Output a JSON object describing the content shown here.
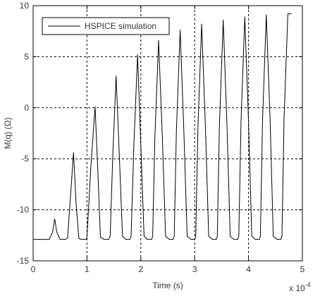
{
  "chart_data": {
    "type": "line",
    "title": "",
    "xlabel": "Time (s)",
    "ylabel": "M(q) (Ω)",
    "x_scale_note": "x 10",
    "x_scale_exponent": "-4",
    "xlim": [
      0,
      5
    ],
    "ylim": [
      -15,
      10
    ],
    "xticks": [
      0,
      1,
      2,
      3,
      4,
      5
    ],
    "yticks": [
      -15,
      -10,
      -5,
      0,
      5,
      10
    ],
    "grid": true,
    "legend": "top-left",
    "series": [
      {
        "name": "HSPICE simulation",
        "color": "#000000",
        "x": [
          0,
          0.3,
          0.36,
          0.4,
          0.44,
          0.5,
          0.6,
          0.64,
          0.69,
          0.75,
          0.8,
          0.85,
          0.9,
          0.98,
          1.0,
          1.07,
          1.15,
          1.2,
          1.25,
          1.32,
          1.4,
          1.43,
          1.48,
          1.54,
          1.6,
          1.66,
          1.72,
          1.8,
          1.82,
          1.87,
          1.94,
          2.0,
          2.06,
          2.12,
          2.2,
          2.22,
          2.26,
          2.33,
          2.4,
          2.46,
          2.53,
          2.6,
          2.62,
          2.66,
          2.73,
          2.8,
          2.86,
          2.93,
          3.0,
          3.02,
          3.06,
          3.13,
          3.2,
          3.26,
          3.33,
          3.4,
          3.42,
          3.46,
          3.53,
          3.6,
          3.66,
          3.73,
          3.8,
          3.82,
          3.86,
          3.93,
          4.0,
          4.06,
          4.13,
          4.2,
          4.22,
          4.26,
          4.33,
          4.4,
          4.46,
          4.53,
          4.6,
          4.62,
          4.66,
          4.73,
          4.8
        ],
        "y": [
          -12.9,
          -12.9,
          -12.2,
          -10.9,
          -12.2,
          -12.9,
          -12.9,
          -12.8,
          -9.0,
          -4.4,
          -9.5,
          -12.8,
          -12.9,
          -12.9,
          -12.7,
          -6.0,
          0.1,
          -6.0,
          -12.7,
          -12.9,
          -12.9,
          -12.6,
          -4.5,
          3.1,
          -4.5,
          -12.6,
          -12.9,
          -12.9,
          -12.6,
          -3.7,
          5.2,
          -3.7,
          -12.6,
          -12.9,
          -12.9,
          -12.6,
          -3.0,
          6.6,
          -3.0,
          -12.6,
          -12.9,
          -12.9,
          -12.6,
          -2.4,
          7.6,
          -2.4,
          -12.6,
          -12.9,
          -12.9,
          -12.6,
          -2.0,
          8.2,
          -2.0,
          -12.6,
          -12.9,
          -12.9,
          -12.6,
          -1.7,
          8.6,
          -1.7,
          -12.6,
          -12.9,
          -12.9,
          -12.6,
          -1.4,
          8.9,
          -1.4,
          -12.6,
          -12.9,
          -12.9,
          -12.6,
          -1.2,
          9.1,
          -1.2,
          -12.6,
          -12.9,
          -12.9,
          -12.6,
          -1.1,
          9.2,
          9.2
        ]
      }
    ]
  }
}
